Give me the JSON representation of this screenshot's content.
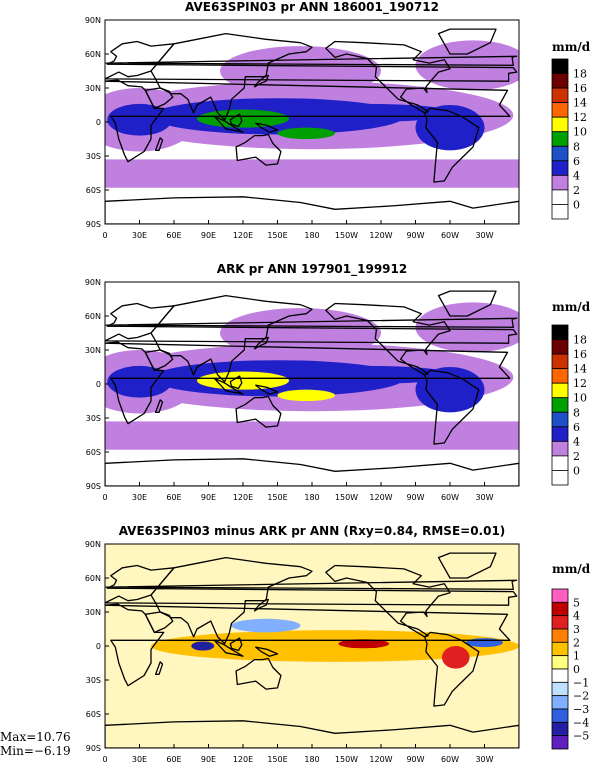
{
  "panels": [
    {
      "title": "AVE63SPIN03 pr ANN 186001_190712",
      "units": "mm/d",
      "levels": [
        "18",
        "16",
        "14",
        "12",
        "10",
        "8",
        "6",
        "4",
        "2",
        "0"
      ],
      "colors": [
        "#000000",
        "#6a0000",
        "#cc3300",
        "#ff6600",
        "#ffff00",
        "#00a000",
        "#1e50c8",
        "#2020c8",
        "#c080e0",
        "#ffffff",
        "#ffffff"
      ],
      "tropical_color": "#2020c8",
      "subtropical_color": "#c080e0",
      "core_color": "#00a000"
    },
    {
      "title": "ARK pr ANN 197901_199912",
      "units": "mm/d",
      "levels": [
        "18",
        "16",
        "14",
        "12",
        "10",
        "8",
        "6",
        "4",
        "2",
        "0"
      ],
      "colors": [
        "#000000",
        "#6a0000",
        "#cc3300",
        "#ff6600",
        "#ffff00",
        "#00a000",
        "#1e50c8",
        "#2020c8",
        "#c080e0",
        "#ffffff",
        "#ffffff"
      ],
      "tropical_color": "#2020c8",
      "subtropical_color": "#c080e0",
      "core_color": "#ffff00"
    },
    {
      "title": "AVE63SPIN03 minus ARK pr ANN (Rxy=0.84, RMSE=0.01)",
      "units": "mm/d",
      "levels": [
        "5",
        "4",
        "3",
        "2",
        "1",
        "0",
        "−1",
        "−2",
        "−3",
        "−4",
        "−5"
      ],
      "colors": [
        "#ff60c0",
        "#c00000",
        "#e02020",
        "#ff8000",
        "#ffc000",
        "#ffff80",
        "#ffffff",
        "#c0e0ff",
        "#80b0ff",
        "#3060e0",
        "#2020a0",
        "#6020c0"
      ],
      "stats": {
        "max": "Max=10.76",
        "min": "Min=−6.19"
      }
    }
  ],
  "lat_labels": [
    "90N",
    "60N",
    "30N",
    "0",
    "30S",
    "60S",
    "90S"
  ],
  "lon_labels": [
    "0",
    "30E",
    "60E",
    "90E",
    "120E",
    "150E",
    "180",
    "150W",
    "120W",
    "90W",
    "60W",
    "30W"
  ]
}
